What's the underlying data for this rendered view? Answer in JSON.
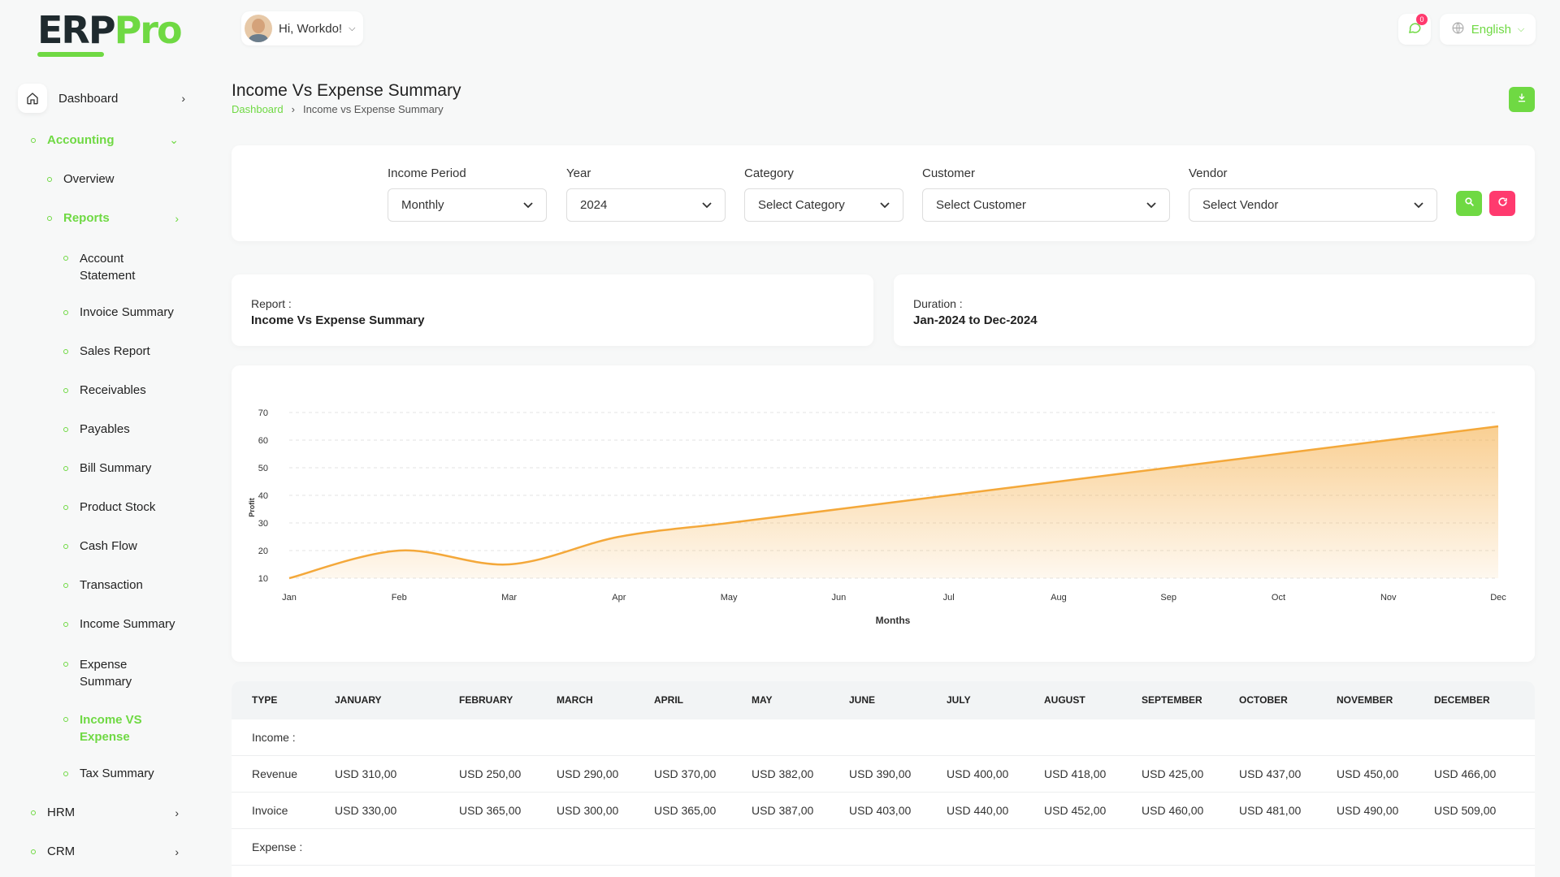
{
  "brand": {
    "erp": "ERP",
    "pro": "Pro"
  },
  "topbar": {
    "greeting": "Hi, Workdo!",
    "notifications": "0",
    "language": "English"
  },
  "sidebar": {
    "dashboard": "Dashboard",
    "accounting": "Accounting",
    "overview": "Overview",
    "reports": "Reports",
    "report_items": [
      "Account Statement",
      "Invoice Summary",
      "Sales Report",
      "Receivables",
      "Payables",
      "Bill Summary",
      "Product Stock",
      "Cash Flow",
      "Transaction",
      "Income Summary",
      "Expense Summary",
      "Income VS Expense",
      "Tax Summary"
    ],
    "hrm": "HRM",
    "crm": "CRM"
  },
  "page": {
    "title": "Income Vs Expense Summary",
    "breadcrumb": [
      "Dashboard",
      "Income vs Expense Summary"
    ]
  },
  "filters": {
    "income_period": {
      "label": "Income Period",
      "value": "Monthly"
    },
    "year": {
      "label": "Year",
      "value": "2024"
    },
    "category": {
      "label": "Category",
      "value": "Select Category"
    },
    "customer": {
      "label": "Customer",
      "value": "Select Customer"
    },
    "vendor": {
      "label": "Vendor",
      "value": "Select Vendor"
    }
  },
  "info": {
    "report_label": "Report :",
    "report_value": "Income Vs Expense Summary",
    "duration_label": "Duration :",
    "duration_value": "Jan-2024 to Dec-2024"
  },
  "chart_data": {
    "type": "area",
    "categories": [
      "Jan",
      "Feb",
      "Mar",
      "Apr",
      "May",
      "Jun",
      "Jul",
      "Aug",
      "Sep",
      "Oct",
      "Nov",
      "Dec"
    ],
    "series": [
      {
        "values": [
          10,
          20,
          15,
          25,
          30,
          35,
          40,
          45,
          50,
          55,
          60,
          65
        ]
      }
    ],
    "xlabel": "Months",
    "ylabel": "Profit",
    "yticks": [
      10,
      20,
      30,
      40,
      50,
      60,
      70
    ],
    "ylim": [
      10,
      70
    ],
    "color": "#f4a83a"
  },
  "table": {
    "headers": [
      "TYPE",
      "JANUARY",
      "FEBRUARY",
      "MARCH",
      "APRIL",
      "MAY",
      "JUNE",
      "JULY",
      "AUGUST",
      "SEPTEMBER",
      "OCTOBER",
      "NOVEMBER",
      "DECEMBER"
    ],
    "income_label": "Income :",
    "rows": [
      {
        "type": "Revenue",
        "values": [
          "USD 310,00",
          "USD 250,00",
          "USD 290,00",
          "USD 370,00",
          "USD 382,00",
          "USD 390,00",
          "USD 400,00",
          "USD 418,00",
          "USD 425,00",
          "USD 437,00",
          "USD 450,00",
          "USD 466,00"
        ]
      },
      {
        "type": "Invoice",
        "values": [
          "USD 330,00",
          "USD 365,00",
          "USD 300,00",
          "USD 365,00",
          "USD 387,00",
          "USD 403,00",
          "USD 440,00",
          "USD 452,00",
          "USD 460,00",
          "USD 481,00",
          "USD 490,00",
          "USD 509,00"
        ]
      }
    ],
    "expense_label": "Expense :"
  }
}
